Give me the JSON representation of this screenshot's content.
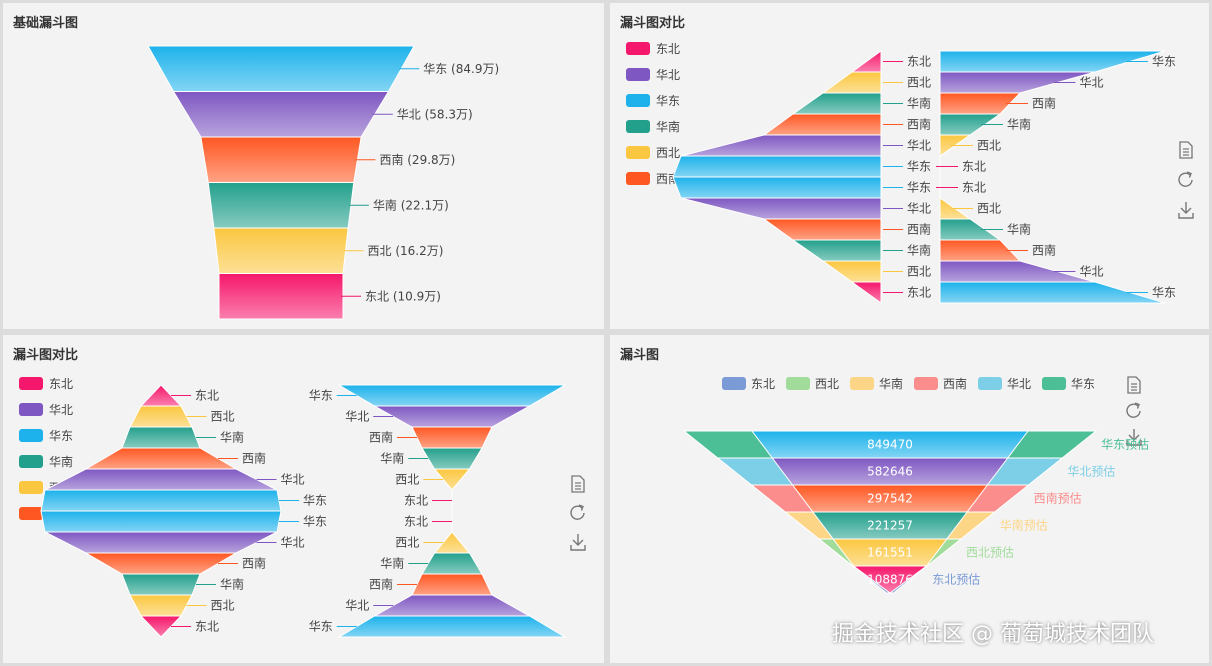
{
  "colors": {
    "东北": "#f5176b",
    "西北": "#fbc740",
    "华南": "#23a08c",
    "西南": "#ff5722",
    "华北": "#7e57c2",
    "华东": "#1db2eb"
  },
  "toolbox": {
    "icons": [
      "data-view-icon",
      "restore-icon",
      "save-image-icon"
    ]
  },
  "panel1": {
    "title": "基础漏斗图",
    "chart_data": {
      "type": "funnel",
      "items": [
        {
          "name": "华东",
          "value": 84.9,
          "label": "华东 (84.9万)"
        },
        {
          "name": "华北",
          "value": 58.3,
          "label": "华北 (58.3万)"
        },
        {
          "name": "西南",
          "value": 29.8,
          "label": "西南 (29.8万)"
        },
        {
          "name": "华南",
          "value": 22.1,
          "label": "华南 (22.1万)"
        },
        {
          "name": "西北",
          "value": 16.2,
          "label": "西北 (16.2万)"
        },
        {
          "name": "东北",
          "value": 10.9,
          "label": "东北 (10.9万)"
        }
      ]
    }
  },
  "panel2": {
    "title": "漏斗图对比",
    "legend": [
      "东北",
      "华北",
      "华东",
      "华南",
      "西北",
      "西南"
    ],
    "chart_data": {
      "type": "funnel",
      "order_top": [
        "东北",
        "西北",
        "华南",
        "西南",
        "华北",
        "华东"
      ],
      "left_top": [
        "东北",
        "西北",
        "华南",
        "西南",
        "华北",
        "华东"
      ],
      "left_bottom": [
        "华东",
        "华北",
        "西南",
        "华南",
        "西北",
        "东北"
      ],
      "right_top": [
        "华东",
        "华北",
        "西南",
        "华南",
        "西北",
        "东北"
      ],
      "right_bottom": [
        "东北",
        "西北",
        "华南",
        "西南",
        "华北",
        "华东"
      ]
    }
  },
  "panel3": {
    "title": "漏斗图对比",
    "legend": [
      "东北",
      "华北",
      "华东",
      "华南",
      "西北",
      "西南"
    ],
    "chart_data": {
      "type": "funnel",
      "left_top": [
        "东北",
        "西北",
        "华南",
        "西南",
        "华北",
        "华东"
      ],
      "left_bottom": [
        "华东",
        "华北",
        "西南",
        "华南",
        "西北",
        "东北"
      ],
      "right_top": [
        "华东",
        "华北",
        "西南",
        "华南",
        "西北",
        "东北"
      ],
      "right_bottom": [
        "东北",
        "西北",
        "华南",
        "西南",
        "华北",
        "华东"
      ]
    }
  },
  "panel4": {
    "title": "漏斗图",
    "legend": [
      {
        "name": "东北",
        "color": "#7b9bd6"
      },
      {
        "name": "西北",
        "color": "#a2dc9b"
      },
      {
        "name": "华南",
        "color": "#fdd587"
      },
      {
        "name": "西南",
        "color": "#fc8d8d"
      },
      {
        "name": "华北",
        "color": "#7ccfe6"
      },
      {
        "name": "华东",
        "color": "#4cbf96"
      }
    ],
    "chart_data": {
      "type": "funnel",
      "actual": [
        {
          "name": "华东",
          "value": 849470
        },
        {
          "name": "华北",
          "value": 582646
        },
        {
          "name": "西南",
          "value": 297542
        },
        {
          "name": "华南",
          "value": 221257
        },
        {
          "name": "西北",
          "value": 161551
        },
        {
          "name": "东北",
          "value": 108876
        }
      ],
      "forecast_labels": [
        "华东预估",
        "华北预估",
        "西南预估",
        "华南预估",
        "西北预估",
        "东北预估"
      ]
    }
  },
  "watermark": "掘金技术社区 @ 葡萄城技术团队"
}
